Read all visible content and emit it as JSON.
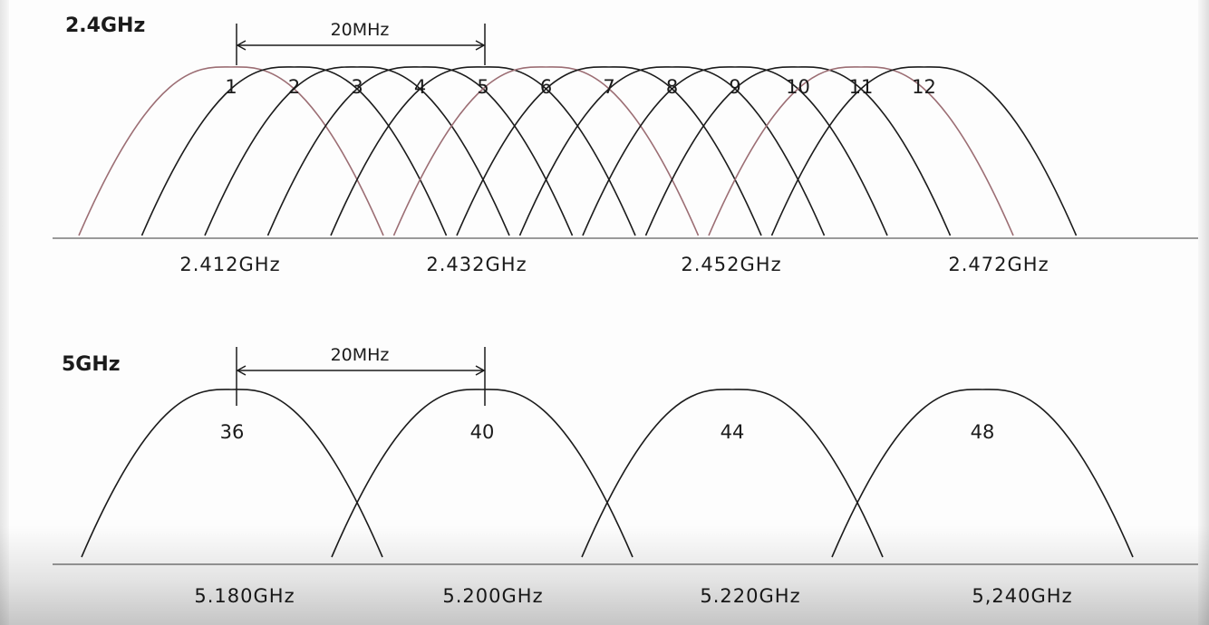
{
  "band_24": {
    "title": "2.4GHz",
    "width_label": "20MHz",
    "channels": [
      {
        "label": "1",
        "highlight": true
      },
      {
        "label": "2",
        "highlight": false
      },
      {
        "label": "3",
        "highlight": false
      },
      {
        "label": "4",
        "highlight": false
      },
      {
        "label": "5",
        "highlight": false
      },
      {
        "label": "6",
        "highlight": true
      },
      {
        "label": "7",
        "highlight": false
      },
      {
        "label": "8",
        "highlight": false
      },
      {
        "label": "9",
        "highlight": false
      },
      {
        "label": "10",
        "highlight": false
      },
      {
        "label": "11",
        "highlight": true
      },
      {
        "label": "12",
        "highlight": false
      }
    ],
    "frequencies": [
      "2.412GHz",
      "2.432GHz",
      "2.452GHz",
      "2.472GHz"
    ]
  },
  "band_5": {
    "title": "5GHz",
    "width_label": "20MHz",
    "channels": [
      {
        "label": "36"
      },
      {
        "label": "40"
      },
      {
        "label": "44"
      },
      {
        "label": "48"
      }
    ],
    "frequencies": [
      "5.180GHz",
      "5.200GHz",
      "5.220GHz",
      "5,240GHz"
    ]
  },
  "colors": {
    "curve": "#1b1b1b",
    "highlight_curve": "#9c6e74",
    "baseline": "#9a9a9a"
  }
}
